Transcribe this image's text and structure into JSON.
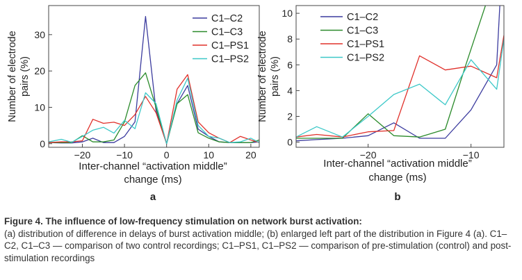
{
  "colors": {
    "C1-C2": "#3b3b9e",
    "C1-C3": "#2a8a2a",
    "C1-PS1": "#e0302a",
    "C1-PS2": "#3cc8c8",
    "frame": "#444444",
    "divider": "#777777"
  },
  "chart_data": [
    {
      "type": "line",
      "panel_label": "a",
      "xlabel": "Inter-channel “activation middle” change (ms)",
      "xlabel_lines": [
        "Inter-channel “activation middle”",
        "change (ms)"
      ],
      "ylabel": "Number of electrode pairs (%)",
      "ylabel_lines": [
        "Number of electrode",
        "pairs (%)"
      ],
      "xlim": [
        -28,
        22
      ],
      "ylim": [
        -1,
        38
      ],
      "xticks": [
        -20,
        -10,
        0,
        10,
        20
      ],
      "xtick_labels": [
        "−20",
        "−10",
        "0",
        "10",
        "20"
      ],
      "yticks": [
        0,
        10,
        20,
        30
      ],
      "ytick_labels": [
        "0",
        "10",
        "20",
        "30"
      ],
      "legend_position": "top-right",
      "series": [
        {
          "name": "C1–C2",
          "key": "C1-C2",
          "x": [
            -28,
            -25,
            -22.5,
            -20,
            -17.5,
            -15,
            -12.5,
            -10,
            -7.5,
            -5,
            -2.5,
            0,
            2.5,
            5,
            7.5,
            10,
            12.5,
            15,
            17.5,
            20,
            22
          ],
          "y": [
            0.3,
            0.2,
            0.2,
            0.5,
            1.5,
            0.3,
            0.3,
            2.0,
            6.0,
            35.0,
            9.0,
            0.0,
            11.0,
            16.0,
            4.0,
            2.0,
            0.5,
            0.3,
            0.3,
            0.3,
            0.5
          ]
        },
        {
          "name": "C1–C3",
          "key": "C1-C3",
          "x": [
            -28,
            -25,
            -22.5,
            -20,
            -17.5,
            -15,
            -12.5,
            -10,
            -7.5,
            -5,
            -2.5,
            0,
            2.5,
            5,
            7.5,
            10,
            12.5,
            15,
            17.5,
            20,
            22
          ],
          "y": [
            0.3,
            0.3,
            0.3,
            2.2,
            0.5,
            0.5,
            1.0,
            6.0,
            16.0,
            19.5,
            10.0,
            0.0,
            11.0,
            13.5,
            3.0,
            1.5,
            0.5,
            0.3,
            0.3,
            0.3,
            1.0
          ]
        },
        {
          "name": "C1–PS1",
          "key": "C1-PS1",
          "x": [
            -28,
            -25,
            -22.5,
            -20,
            -17.5,
            -15,
            -12.5,
            -10,
            -7.5,
            -5,
            -2.5,
            0,
            2.5,
            5,
            7.5,
            10,
            12.5,
            15,
            17.5,
            20,
            22
          ],
          "y": [
            0.3,
            0.5,
            0.5,
            0.8,
            6.7,
            5.6,
            5.9,
            5.0,
            8.0,
            13.0,
            8.5,
            0.0,
            15.0,
            19.0,
            6.0,
            3.0,
            1.5,
            0.3,
            2.0,
            1.0,
            0.3
          ]
        },
        {
          "name": "C1–PS2",
          "key": "C1-PS2",
          "x": [
            -28,
            -25,
            -22.5,
            -20,
            -17.5,
            -15,
            -12.5,
            -10,
            -7.5,
            -5,
            -2.5,
            0,
            2.5,
            5,
            7.5,
            10,
            12.5,
            15,
            17.5,
            20,
            22
          ],
          "y": [
            0.5,
            1.2,
            0.4,
            2.0,
            3.7,
            4.5,
            2.9,
            6.4,
            4.1,
            14.0,
            11.0,
            0.0,
            12.0,
            18.0,
            5.0,
            2.0,
            1.5,
            0.3,
            0.5,
            1.5,
            0.3
          ]
        }
      ]
    },
    {
      "type": "line",
      "panel_label": "b",
      "xlabel": "Inter-channel “activation middle” change (ms)",
      "xlabel_lines": [
        "Inter-channel “activation middle”",
        "change (ms)"
      ],
      "ylabel": "Number of electrode pairs (%)",
      "ylabel_lines": [
        "Number of electrode",
        "pairs (%)"
      ],
      "xlim": [
        -27,
        -6.8
      ],
      "ylim": [
        -0.4,
        10.6
      ],
      "xticks": [
        -20,
        -10
      ],
      "xtick_labels": [
        "−20",
        "−10"
      ],
      "yticks": [
        0,
        2,
        4,
        6,
        8,
        10
      ],
      "ytick_labels": [
        "0",
        "2",
        "4",
        "6",
        "8",
        "10"
      ],
      "legend_position": "top-left",
      "series": [
        {
          "name": "C1–C2",
          "key": "C1-C2",
          "x": [
            -27,
            -25,
            -22.5,
            -20,
            -17.5,
            -15,
            -12.5,
            -10,
            -7.5,
            -7.2
          ],
          "y": [
            0.1,
            0.2,
            0.3,
            0.5,
            1.5,
            0.3,
            0.3,
            2.5,
            6.0,
            10.6
          ]
        },
        {
          "name": "C1–C3",
          "key": "C1-C3",
          "x": [
            -27,
            -25,
            -22.5,
            -20,
            -17.5,
            -15,
            -12.5,
            -10.5,
            -8.6
          ],
          "y": [
            0.3,
            0.3,
            0.3,
            2.2,
            0.5,
            0.4,
            1.0,
            6.0,
            10.6
          ]
        },
        {
          "name": "C1–PS1",
          "key": "C1-PS1",
          "x": [
            -27,
            -25,
            -22.5,
            -20,
            -17.5,
            -15,
            -12.5,
            -10,
            -7.5,
            -6.8
          ],
          "y": [
            0.4,
            0.6,
            0.4,
            0.8,
            0.9,
            6.7,
            5.6,
            5.9,
            5.0,
            8.3
          ]
        },
        {
          "name": "C1–PS2",
          "key": "C1-PS2",
          "x": [
            -27,
            -25,
            -22.5,
            -20,
            -17.5,
            -15,
            -12.5,
            -10,
            -7.5,
            -6.8
          ],
          "y": [
            0.4,
            1.2,
            0.4,
            2.0,
            3.7,
            4.5,
            2.9,
            6.4,
            4.1,
            8.0
          ]
        }
      ]
    }
  ],
  "caption": {
    "title": "Figure 4. The influence of low-frequency stimulation on network burst activation:",
    "text": "(a) distribution of difference in delays of burst activation middle; (b) enlarged left part of the distribution in Figure 4 (a). C1–C2, C1–C3 — comparison of two control recordings; C1–PS1, C1–PS2 — comparison of pre-stimulation (control) and post-stimulation recordings"
  }
}
